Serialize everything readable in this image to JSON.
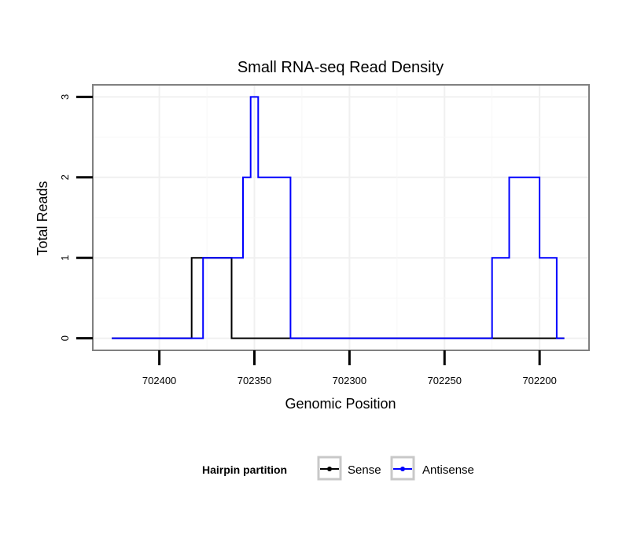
{
  "chart_data": {
    "type": "line",
    "title": "Small RNA-seq Read Density",
    "xlabel": "Genomic Position",
    "ylabel": "Total Reads",
    "x_reversed": true,
    "xlim": [
      702435,
      702174
    ],
    "ylim": [
      -0.15,
      3.15
    ],
    "x_ticks": [
      702400,
      702350,
      702300,
      702250,
      702200
    ],
    "y_ticks": [
      0,
      1,
      2,
      3
    ],
    "grid": true,
    "legend": {
      "title": "Hairpin partition",
      "position": "bottom"
    },
    "series": [
      {
        "name": "Sense",
        "color": "#000000",
        "step_points": [
          [
            702425,
            0
          ],
          [
            702383,
            0
          ],
          [
            702383,
            1
          ],
          [
            702362,
            1
          ],
          [
            702362,
            0
          ],
          [
            702187,
            0
          ]
        ]
      },
      {
        "name": "Antisense",
        "color": "#0000ff",
        "step_points": [
          [
            702425,
            0
          ],
          [
            702377,
            0
          ],
          [
            702377,
            1
          ],
          [
            702356,
            1
          ],
          [
            702356,
            2
          ],
          [
            702352,
            2
          ],
          [
            702352,
            3
          ],
          [
            702348,
            3
          ],
          [
            702348,
            2
          ],
          [
            702331,
            2
          ],
          [
            702331,
            0
          ],
          [
            702225,
            0
          ],
          [
            702225,
            1
          ],
          [
            702216,
            1
          ],
          [
            702216,
            2
          ],
          [
            702200,
            2
          ],
          [
            702200,
            1
          ],
          [
            702191,
            1
          ],
          [
            702191,
            0
          ],
          [
            702187,
            0
          ]
        ]
      }
    ]
  }
}
